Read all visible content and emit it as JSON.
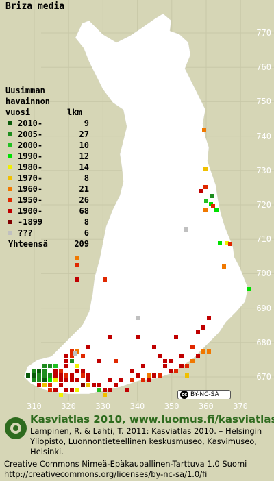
{
  "species": "Briza media",
  "legend": {
    "heading": [
      "Uusimman",
      "havainnon"
    ],
    "col_year": "vuosi",
    "col_count": "lkm",
    "rows": [
      {
        "label": "2010-",
        "count": "9",
        "color": "#0a5a0a"
      },
      {
        "label": "2005-",
        "count": "27",
        "color": "#1e8c1e"
      },
      {
        "label": "2000-",
        "count": "10",
        "color": "#22c022"
      },
      {
        "label": "1990-",
        "count": "12",
        "color": "#00e000"
      },
      {
        "label": "1980-",
        "count": "14",
        "color": "#f0f000"
      },
      {
        "label": "1970-",
        "count": "8",
        "color": "#f0c000"
      },
      {
        "label": "1960-",
        "count": "21",
        "color": "#f07800"
      },
      {
        "label": "1950-",
        "count": "26",
        "color": "#e02800"
      },
      {
        "label": "1900-",
        "count": "68",
        "color": "#c00000"
      },
      {
        "label": "-1899",
        "count": "8",
        "color": "#800000"
      },
      {
        "label": "???",
        "count": "6",
        "color": "#c0c0c0"
      }
    ],
    "total_label": "Yhteensä",
    "total_count": "209"
  },
  "grid_north": [
    "770",
    "760",
    "750",
    "740",
    "730",
    "720",
    "710",
    "700",
    "690",
    "680",
    "670"
  ],
  "grid_east": [
    "310",
    "320",
    "330",
    "340",
    "350",
    "360",
    "370"
  ],
  "colors": {
    "background": "#d6d6b6",
    "land": "#ffffff",
    "grid": "#c8c8a8",
    "footer_title": "#2e6b1e"
  },
  "license_badge": "BY-NC-SA",
  "footer": {
    "title": "Kasviatlas 2010, www.luomus.fi/kasviatlas",
    "citation": "Lampinen, R. & Lahti, T. 2011: Kasviatlas 2010. – Helsingin Yliopisto, Luonnontieteellinen keskusmuseo, Kasvimuseo, Helsinki.",
    "license": "Creative Commons Nimeä-Epäkaupallinen-Tarttuva 1.0 Suomi http://creativecommons.org/licenses/by-nc-sa/1.0/fi"
  }
}
